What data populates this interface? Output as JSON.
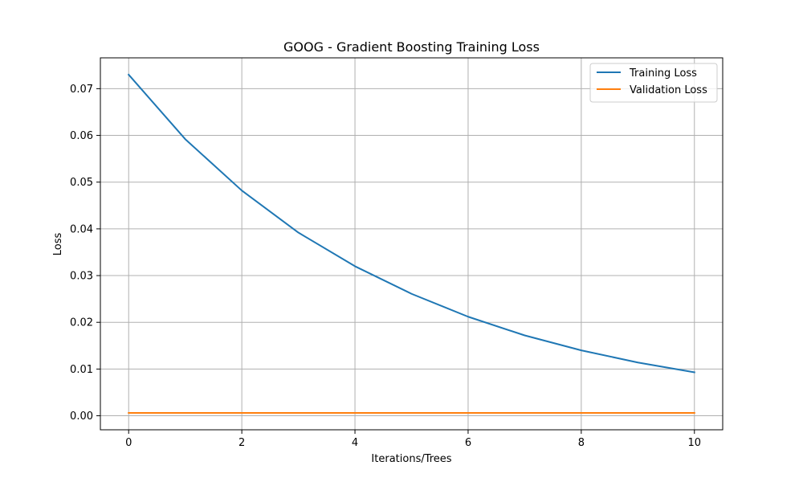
{
  "colors": {
    "training": "#1f77b4",
    "validation": "#ff7f0e",
    "grid": "#b0b0b0",
    "axis": "#000000"
  },
  "chart_data": {
    "type": "line",
    "title": "GOOG - Gradient Boosting Training Loss",
    "xlabel": "Iterations/Trees",
    "ylabel": "Loss",
    "xlim": [
      -0.5,
      10.5
    ],
    "ylim": [
      -0.003,
      0.0766
    ],
    "xticks": [
      0,
      2,
      4,
      6,
      8,
      10
    ],
    "xtick_labels": [
      "0",
      "2",
      "4",
      "6",
      "8",
      "10"
    ],
    "yticks": [
      0,
      0.01,
      0.02,
      0.03,
      0.04,
      0.05,
      0.06,
      0.07
    ],
    "ytick_labels": [
      "0.00",
      "0.01",
      "0.02",
      "0.03",
      "0.04",
      "0.05",
      "0.06",
      "0.07"
    ],
    "grid": true,
    "legend_position": "top-right",
    "x": [
      0,
      1,
      2,
      3,
      4,
      5,
      6,
      7,
      8,
      9,
      10
    ],
    "series": [
      {
        "name": "Training Loss",
        "color": "#1f77b4",
        "values": [
          0.073,
          0.0592,
          0.0482,
          0.0392,
          0.032,
          0.0261,
          0.0212,
          0.0172,
          0.014,
          0.0114,
          0.0093
        ]
      },
      {
        "name": "Validation Loss",
        "color": "#ff7f0e",
        "values": [
          0.0006,
          0.0006,
          0.0006,
          0.0006,
          0.0006,
          0.0006,
          0.0006,
          0.0006,
          0.0006,
          0.0006,
          0.0006
        ]
      }
    ]
  }
}
